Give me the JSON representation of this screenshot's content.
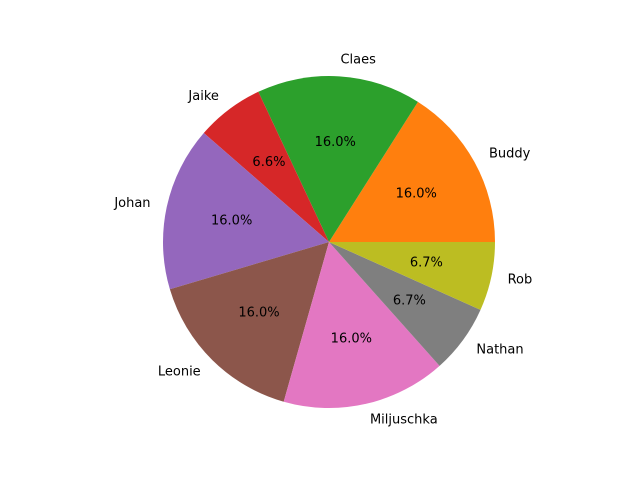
{
  "chart_data": {
    "type": "pie",
    "labels": [
      "Buddy",
      "Claes",
      "Jaike",
      "Johan",
      "Leonie",
      "Miljuschka",
      "Nathan",
      "Rob"
    ],
    "values": [
      16.0,
      16.0,
      6.6,
      16.0,
      16.0,
      16.0,
      6.7,
      6.7
    ],
    "pct_labels": [
      "16.0%",
      "16.0%",
      "6.6%",
      "16.0%",
      "16.0%",
      "16.0%",
      "6.7%",
      "6.7%"
    ],
    "colors": [
      "#ff7f0e",
      "#2ca02c",
      "#d62728",
      "#9467bd",
      "#8c564b",
      "#e377c2",
      "#7f7f7f",
      "#bcbd22"
    ],
    "start_angle_deg": 0,
    "direction": "counterclockwise"
  }
}
